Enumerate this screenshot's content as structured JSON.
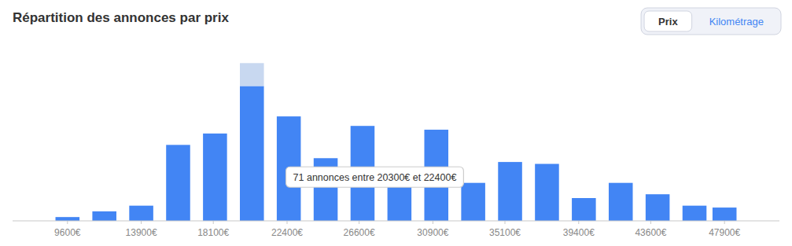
{
  "chart_data": {
    "type": "bar",
    "title": "Répartition des annonces par prix",
    "x": [
      9600,
      11750,
      13900,
      16050,
      18200,
      20350,
      22500,
      24650,
      26800,
      28950,
      31100,
      33250,
      35400,
      37550,
      39700,
      41850,
      44000,
      46150,
      47900
    ],
    "series": [
      {
        "color": "#4285f4",
        "values": [
          2,
          5,
          8,
          40,
          46,
          71,
          55,
          33,
          50,
          26,
          48,
          20,
          31,
          30,
          12,
          20,
          14,
          8,
          7
        ]
      },
      {
        "color": "#c8d8f0",
        "values": [
          null,
          null,
          null,
          null,
          null,
          12.07,
          null,
          null,
          null,
          null,
          null,
          null,
          null,
          null,
          null,
          null,
          null,
          null,
          null
        ]
      }
    ],
    "stacked": true,
    "xlim": [
      6400,
      51100
    ],
    "xticks": [
      {
        "value": 9600,
        "label": "9600€"
      },
      {
        "value": 13900,
        "label": "13900€"
      },
      {
        "value": 18100,
        "label": "18100€"
      },
      {
        "value": 22400,
        "label": "22400€"
      },
      {
        "value": 26600,
        "label": "26600€"
      },
      {
        "value": 30900,
        "label": "30900€"
      },
      {
        "value": 35100,
        "label": "35100€"
      },
      {
        "value": 39400,
        "label": "39400€"
      },
      {
        "value": 43600,
        "label": "43600€"
      },
      {
        "value": 47900,
        "label": "47900€"
      }
    ],
    "ylim": [
      0,
      92.3
    ],
    "grid": false,
    "tick_labels": "x",
    "annotations": [
      "71 annonces entre 20300€ et 22400€"
    ],
    "buttons": [
      "Prix",
      "Kilométrage"
    ]
  }
}
